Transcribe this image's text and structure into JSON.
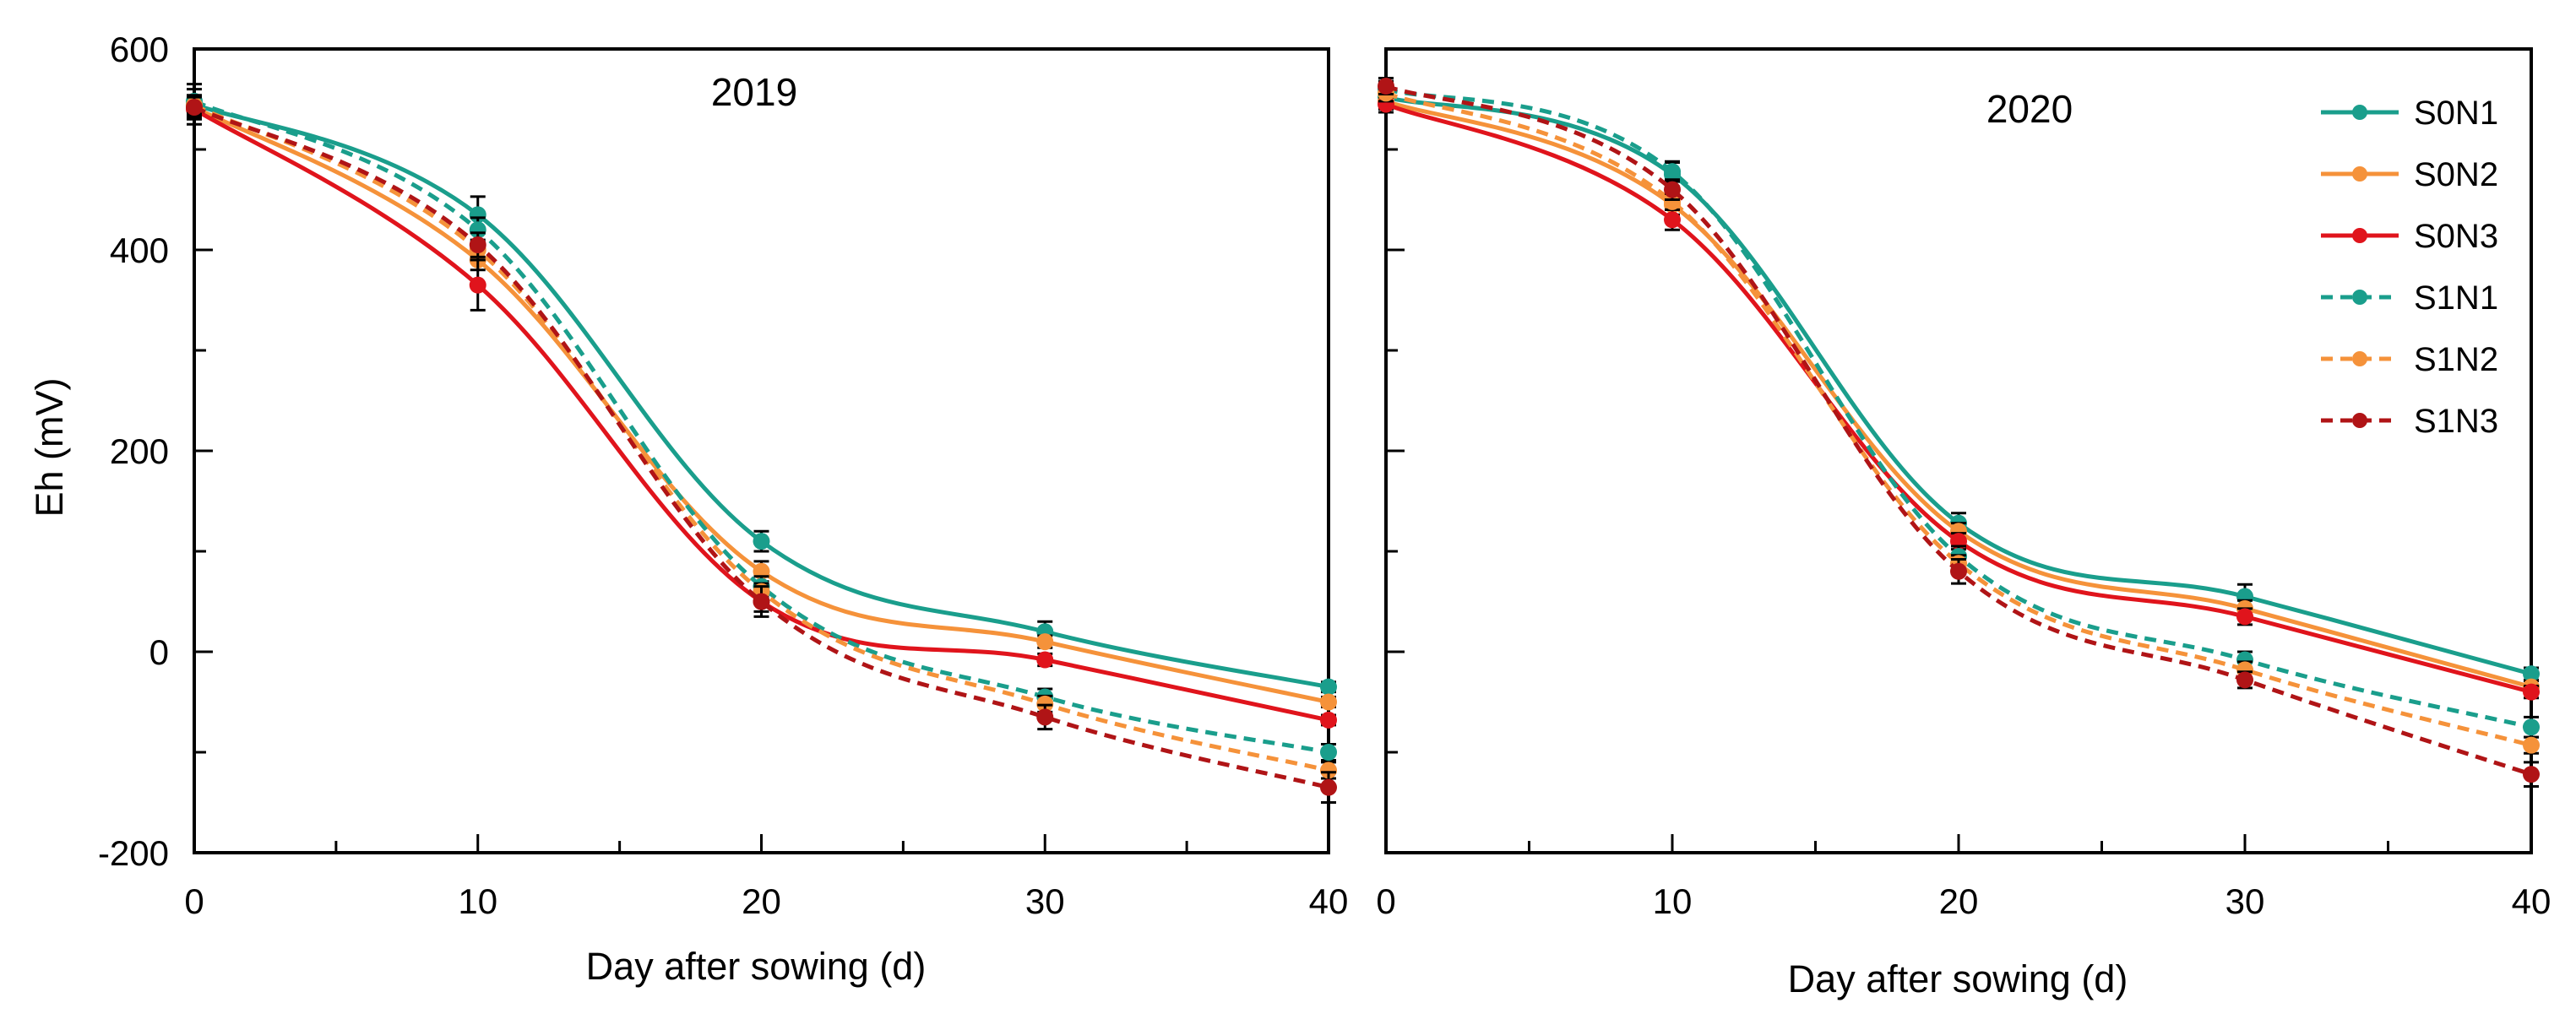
{
  "chart_data": {
    "type": "line",
    "ylabel": "Eh (mV)",
    "xlabel": "Day after sowing (d)",
    "xlim": [
      0,
      40
    ],
    "ylim": [
      -200,
      600
    ],
    "x_ticks": [
      "0",
      "10",
      "20",
      "30",
      "40"
    ],
    "y_ticks": [
      "600",
      "400",
      "200",
      "0",
      "-200"
    ],
    "x": [
      0,
      10,
      20,
      30,
      40
    ],
    "legend": {
      "position": "top-right",
      "entries": [
        {
          "name": "S0N1",
          "color": "#1a9e8c",
          "style": "solid"
        },
        {
          "name": "S0N2",
          "color": "#f5923a",
          "style": "solid"
        },
        {
          "name": "S0N3",
          "color": "#e0141c",
          "style": "solid"
        },
        {
          "name": "S1N1",
          "color": "#1a9e8c",
          "style": "dashed"
        },
        {
          "name": "S1N2",
          "color": "#f5923a",
          "style": "dashed"
        },
        {
          "name": "S1N3",
          "color": "#b01416",
          "style": "dashed"
        }
      ]
    },
    "panels": [
      {
        "title": "2019",
        "series": [
          {
            "name": "S0N1",
            "values": [
              545,
              435,
              110,
              20,
              -35
            ],
            "errors": [
              20,
              18,
              10,
              10,
              5
            ]
          },
          {
            "name": "S0N2",
            "values": [
              542,
              390,
              80,
              10,
              -50
            ],
            "errors": [
              10,
              10,
              10,
              6,
              5
            ]
          },
          {
            "name": "S0N3",
            "values": [
              540,
              365,
              50,
              -8,
              -68
            ],
            "errors": [
              10,
              25,
              10,
              6,
              5
            ]
          },
          {
            "name": "S1N1",
            "values": [
              548,
              420,
              65,
              -45,
              -100
            ],
            "errors": [
              12,
              12,
              10,
              8,
              8
            ]
          },
          {
            "name": "S1N2",
            "values": [
              544,
              400,
              60,
              -52,
              -118
            ],
            "errors": [
              10,
              10,
              8,
              8,
              8
            ]
          },
          {
            "name": "S1N3",
            "values": [
              542,
              405,
              50,
              -65,
              -135
            ],
            "errors": [
              10,
              12,
              15,
              12,
              15
            ]
          }
        ]
      },
      {
        "title": "2020",
        "series": [
          {
            "name": "S0N1",
            "values": [
              552,
              475,
              128,
              55,
              -22
            ],
            "errors": [
              10,
              12,
              10,
              12,
              6
            ]
          },
          {
            "name": "S0N2",
            "values": [
              548,
              445,
              120,
              43,
              -35
            ],
            "errors": [
              8,
              10,
              8,
              8,
              6
            ]
          },
          {
            "name": "S0N3",
            "values": [
              545,
              430,
              110,
              35,
              -40
            ],
            "errors": [
              8,
              10,
              8,
              8,
              6
            ]
          },
          {
            "name": "S1N1",
            "values": [
              560,
              478,
              95,
              -8,
              -75
            ],
            "errors": [
              8,
              10,
              10,
              8,
              10
            ]
          },
          {
            "name": "S1N2",
            "values": [
              556,
              448,
              88,
              -18,
              -93
            ],
            "errors": [
              8,
              8,
              8,
              8,
              8
            ]
          },
          {
            "name": "S1N3",
            "values": [
              563,
              460,
              80,
              -28,
              -122
            ],
            "errors": [
              8,
              10,
              12,
              8,
              12
            ]
          }
        ]
      }
    ]
  }
}
